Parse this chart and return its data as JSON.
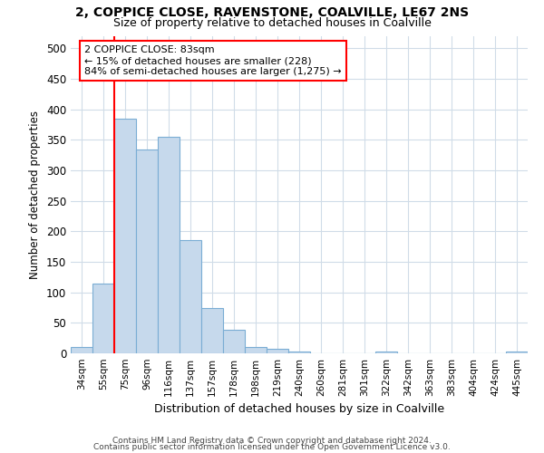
{
  "title1": "2, COPPICE CLOSE, RAVENSTONE, COALVILLE, LE67 2NS",
  "title2": "Size of property relative to detached houses in Coalville",
  "xlabel": "Distribution of detached houses by size in Coalville",
  "ylabel": "Number of detached properties",
  "bin_labels": [
    "34sqm",
    "55sqm",
    "75sqm",
    "96sqm",
    "116sqm",
    "137sqm",
    "157sqm",
    "178sqm",
    "198sqm",
    "219sqm",
    "240sqm",
    "260sqm",
    "281sqm",
    "301sqm",
    "322sqm",
    "342sqm",
    "363sqm",
    "383sqm",
    "404sqm",
    "424sqm",
    "445sqm"
  ],
  "bar_values": [
    10,
    115,
    385,
    335,
    355,
    185,
    75,
    38,
    10,
    7,
    3,
    0,
    0,
    0,
    3,
    0,
    0,
    0,
    0,
    0,
    3
  ],
  "bar_color": "#c6d9ec",
  "bar_edge_color": "#7aadd4",
  "annotation_text": "2 COPPICE CLOSE: 83sqm\n← 15% of detached houses are smaller (228)\n84% of semi-detached houses are larger (1,275) →",
  "annotation_box_color": "white",
  "annotation_box_edge": "red",
  "footnote1": "Contains HM Land Registry data © Crown copyright and database right 2024.",
  "footnote2": "Contains public sector information licensed under the Open Government Licence v3.0.",
  "ylim": [
    0,
    520
  ],
  "yticks": [
    0,
    50,
    100,
    150,
    200,
    250,
    300,
    350,
    400,
    450,
    500
  ],
  "background_color": "#ffffff",
  "grid_color": "#d0dce8"
}
